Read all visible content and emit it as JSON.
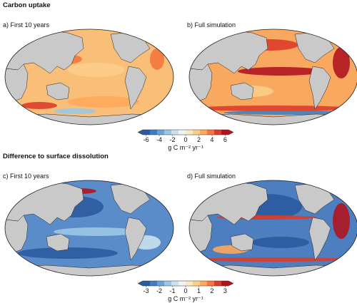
{
  "sections": [
    {
      "title": "Carbon uptake",
      "panels": [
        {
          "label": "a) First 10 years"
        },
        {
          "label": "b) Full simulation"
        }
      ],
      "colorbar": {
        "lim": [
          -6.5,
          6.5
        ],
        "ticks": [
          -6,
          -4,
          -2,
          0,
          2,
          4,
          6
        ],
        "unit": "g C m⁻² yr⁻¹",
        "colors": [
          "#2c5aa0",
          "#3f7fc0",
          "#6aa4d6",
          "#9cc6e4",
          "#c9e1ef",
          "#eef3f4",
          "#fbe8c8",
          "#fdcd8a",
          "#fca95c",
          "#f4773d",
          "#dc3d2a",
          "#b0151f"
        ]
      }
    },
    {
      "title": "Difference to surface dissolution",
      "panels": [
        {
          "label": "c) First 10 years"
        },
        {
          "label": "d) Full simulation"
        }
      ],
      "colorbar": {
        "lim": [
          -3.25,
          3.25
        ],
        "ticks": [
          -3,
          -2,
          -1,
          0,
          1,
          2,
          3
        ],
        "unit": "g C m⁻² yr⁻¹",
        "colors": [
          "#2c5aa0",
          "#3f7fc0",
          "#6aa4d6",
          "#9cc6e4",
          "#c9e1ef",
          "#eef3f4",
          "#fbe8c8",
          "#fdcd8a",
          "#fca95c",
          "#f4773d",
          "#dc3d2a",
          "#b0151f"
        ]
      }
    }
  ]
}
